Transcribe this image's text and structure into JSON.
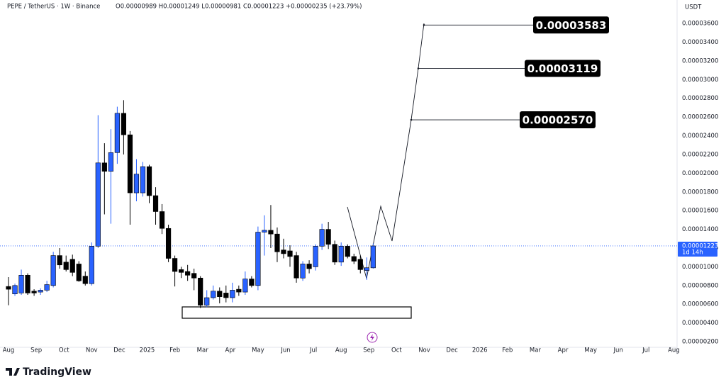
{
  "chart_data": {
    "type": "candlestick",
    "title": "PEPE / TetherUS · 1W · Binance",
    "ohlc_text": "O0.00000989 H0.00001249 L0.00000981 C0.00001223 +0.00000235 (+23.79%)",
    "currency": "USDT",
    "brand": "TradingView",
    "up_color": "#2962ff",
    "down_color": "#000000",
    "open": [
      7.9e-06,
      7.1e-06,
      7.2e-06,
      9.1e-06,
      7.4e-06,
      7.3e-06,
      7.5e-06,
      8e-06,
      1.12e-05,
      1.05e-05,
      1.08e-05,
      1.03e-05,
      9e-06,
      8.2e-06,
      1.22e-05,
      2.11e-05,
      2.02e-05,
      2.22e-05,
      2.64e-05,
      2.41e-05,
      1.79e-05,
      1.79e-05,
      2.07e-05,
      1.76e-05,
      1.59e-05,
      1.41e-05,
      1.09e-05,
      9.7e-06,
      9.5e-06,
      9.3e-06,
      8.8e-06,
      5.9e-06,
      6.7e-06,
      7.4e-06,
      7.2e-06,
      6.7e-06,
      7.6e-06,
      7.3e-06,
      8.7e-06,
      8e-06,
      1.37e-05,
      1.39e-05,
      1.35e-05,
      1.18e-05,
      1.17e-05,
      1.12e-05,
      8.8e-06,
      1.03e-05,
      1e-05,
      1.22e-05,
      1.4e-05,
      1.24e-05,
      1.05e-05,
      1.22e-05,
      1.11e-05,
      1.08e-05,
      9.6e-06,
      9.89e-06
    ],
    "high": [
      8.9e-06,
      8.2e-06,
      9.7e-06,
      9.3e-06,
      7.6e-06,
      7.7e-06,
      8.5e-06,
      1.16e-05,
      1.2e-05,
      1.12e-05,
      1.13e-05,
      1.06e-05,
      9.5e-06,
      1.26e-05,
      2.62e-05,
      2.32e-05,
      2.47e-05,
      2.71e-05,
      2.78e-05,
      2.45e-05,
      2.15e-05,
      2.12e-05,
      2.09e-05,
      1.85e-05,
      1.67e-05,
      1.45e-05,
      1.12e-05,
      1e-05,
      1.02e-05,
      9.8e-06,
      9e-06,
      7.5e-06,
      8e-06,
      7.8e-06,
      8e-06,
      8.3e-06,
      8e-06,
      9.5e-06,
      9e-06,
      1.43e-05,
      1.55e-05,
      1.66e-05,
      1.42e-05,
      1.3e-05,
      1.23e-05,
      1.16e-05,
      1.06e-05,
      1.07e-05,
      1.24e-05,
      1.46e-05,
      1.48e-05,
      1.28e-05,
      1.26e-05,
      1.24e-05,
      1.14e-05,
      1.12e-05,
      1.1e-05,
      1.249e-05
    ],
    "low": [
      5.9e-06,
      6.9e-06,
      7e-06,
      7e-06,
      6.9e-06,
      7e-06,
      7.3e-06,
      7.8e-06,
      9.8e-06,
      9.5e-06,
      9e-06,
      8.4e-06,
      8e-06,
      8e-06,
      1.2e-05,
      1.56e-05,
      1.46e-05,
      2.1e-05,
      2.2e-05,
      1.45e-05,
      1.7e-05,
      1.75e-05,
      1.68e-05,
      1.45e-05,
      1.35e-05,
      1.05e-05,
      7.9e-06,
      8.8e-06,
      8.5e-06,
      7.5e-06,
      5.6e-06,
      5.7e-06,
      6.5e-06,
      6.1e-06,
      6.2e-06,
      6.2e-06,
      6.9e-06,
      7e-06,
      7.8e-06,
      7.5e-06,
      1.12e-05,
      1.2e-05,
      1.05e-05,
      1.09e-05,
      1e-05,
      8.3e-06,
      8.5e-06,
      9.3e-06,
      9.6e-06,
      1.18e-05,
      1.19e-05,
      1.02e-05,
      1.01e-05,
      1.09e-05,
      1.03e-05,
      9.3e-06,
      8.6e-06,
      9.81e-06
    ],
    "close": [
      7.6e-06,
      8e-06,
      9.1e-06,
      7.2e-06,
      7.2e-06,
      7.5e-06,
      8.1e-06,
      1.12e-05,
      1.02e-05,
      9.7e-06,
      9.4e-06,
      8.5e-06,
      8.2e-06,
      1.22e-05,
      2.11e-05,
      2.02e-05,
      2.22e-05,
      2.64e-05,
      2.41e-05,
      1.79e-05,
      1.99e-05,
      2.07e-05,
      1.76e-05,
      1.59e-05,
      1.41e-05,
      1.09e-05,
      9.5e-06,
      9.4e-06,
      9.1e-06,
      8.8e-06,
      5.9e-06,
      6.7e-06,
      7.4e-06,
      6.8e-06,
      6.7e-06,
      7.5e-06,
      7.3e-06,
      8.7e-06,
      8e-06,
      1.37e-05,
      1.39e-05,
      1.35e-05,
      1.16e-05,
      1.14e-05,
      1.11e-05,
      8.8e-06,
      1.03e-05,
      9.8e-06,
      1.22e-05,
      1.4e-05,
      1.24e-05,
      1.05e-05,
      1.22e-05,
      1.11e-05,
      1.06e-05,
      9.7e-06,
      9.9e-06,
      1.223e-05
    ],
    "xtick_labels": [
      "Aug",
      "Sep",
      "Oct",
      "Nov",
      "Dec",
      "2025",
      "Feb",
      "Mar",
      "Apr",
      "May",
      "Jun",
      "Jul",
      "Aug",
      "Sep",
      "Oct",
      "Nov",
      "Dec",
      "2026",
      "Feb",
      "Mar",
      "Apr",
      "May",
      "Jun",
      "Jul",
      "Aug"
    ],
    "ylim": [
      1.4e-06,
      3.85e-05
    ],
    "yticks": [
      {
        "value": 2e-06,
        "label": "0.00000200"
      },
      {
        "value": 4e-06,
        "label": "0.00000400"
      },
      {
        "value": 6e-06,
        "label": "0.00000600"
      },
      {
        "value": 8e-06,
        "label": "0.00000800"
      },
      {
        "value": 1e-05,
        "label": "0.00001000"
      },
      {
        "value": 1.2e-05,
        "label": "0.00001200"
      },
      {
        "value": 1.4e-05,
        "label": "0.00001400"
      },
      {
        "value": 1.6e-05,
        "label": "0.00001600"
      },
      {
        "value": 1.8e-05,
        "label": "0.00001800"
      },
      {
        "value": 2e-05,
        "label": "0.00002000"
      },
      {
        "value": 2.2e-05,
        "label": "0.00002200"
      },
      {
        "value": 2.4e-05,
        "label": "0.00002400"
      },
      {
        "value": 2.6e-05,
        "label": "0.00002600"
      },
      {
        "value": 2.8e-05,
        "label": "0.00002800"
      },
      {
        "value": 3e-05,
        "label": "0.00003000"
      },
      {
        "value": 3.2e-05,
        "label": "0.00003200"
      },
      {
        "value": 3.4e-05,
        "label": "0.00003400"
      },
      {
        "value": 3.6e-05,
        "label": "0.00003600"
      }
    ],
    "grid": false,
    "price_tag": {
      "value": 1.223e-05,
      "label": "0.00001223",
      "countdown": "1d 14h"
    },
    "annotations": [
      {
        "value": 2.57e-05,
        "label": "0.00002570"
      },
      {
        "value": 3.119e-05,
        "label": "0.00003119"
      },
      {
        "value": 3.583e-05,
        "label": "0.00003583"
      }
    ]
  }
}
